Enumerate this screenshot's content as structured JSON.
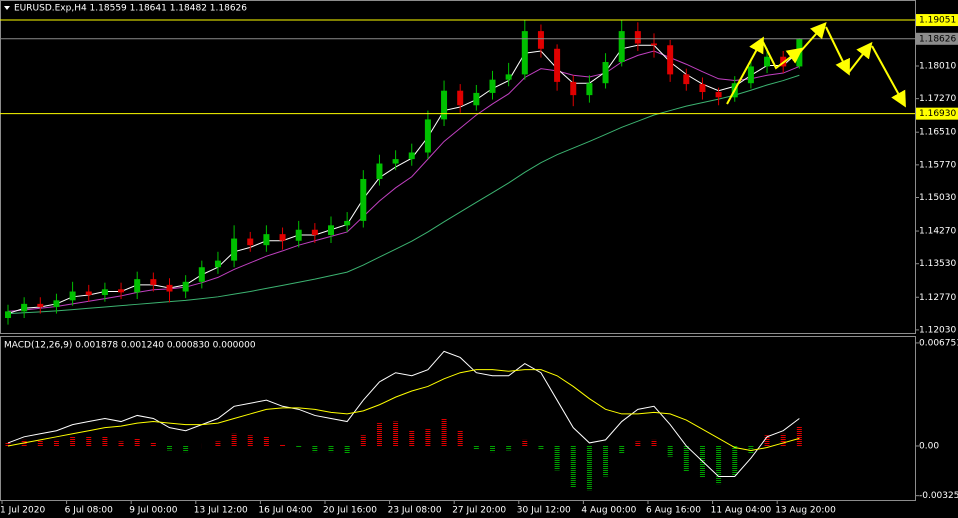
{
  "chart_data": [
    {
      "type": "candlestick",
      "title": "EURUSD.Exp,H4  1.18559 1.18641 1.18482 1.18626",
      "categories": [
        "1 Jul 2020",
        null,
        null,
        null,
        "6 Jul 08:00",
        null,
        null,
        null,
        "9 Jul 00:00",
        null,
        null,
        null,
        "13 Jul 12:00",
        null,
        null,
        null,
        "16 Jul 04:00",
        null,
        null,
        null,
        "20 Jul 16:00",
        null,
        null,
        null,
        "23 Jul 08:00",
        null,
        null,
        null,
        "27 Jul 20:00",
        null,
        null,
        null,
        "30 Jul 12:00",
        null,
        null,
        null,
        "4 Aug 00:00",
        null,
        null,
        null,
        "6 Aug 16:00",
        null,
        null,
        null,
        "11 Aug 04:00",
        null,
        null,
        null,
        "13 Aug 20:00",
        null
      ],
      "open": [
        1.123,
        1.1245,
        1.1262,
        1.1255,
        1.127,
        1.129,
        1.1282,
        1.1295,
        1.1288,
        1.1318,
        1.1305,
        1.129,
        1.1312,
        1.1345,
        1.136,
        1.141,
        1.1395,
        1.142,
        1.1405,
        1.143,
        1.1418,
        1.144,
        1.145,
        1.1545,
        1.158,
        1.159,
        1.1605,
        1.168,
        1.1745,
        1.1712,
        1.174,
        1.177,
        1.1782,
        1.188,
        1.184,
        1.1765,
        1.1735,
        1.1762,
        1.181,
        1.188,
        1.1852,
        1.1848,
        1.1782,
        1.176,
        1.1742,
        1.173,
        1.1762,
        1.18,
        1.1822,
        1.18
      ],
      "high": [
        1.126,
        1.1277,
        1.1277,
        1.1285,
        1.1312,
        1.1305,
        1.131,
        1.131,
        1.1335,
        1.1333,
        1.132,
        1.1327,
        1.136,
        1.138,
        1.144,
        1.1425,
        1.144,
        1.1435,
        1.145,
        1.1445,
        1.146,
        1.147,
        1.1565,
        1.16,
        1.161,
        1.1625,
        1.17,
        1.1768,
        1.176,
        1.1758,
        1.179,
        1.1808,
        1.1905,
        1.1895,
        1.185,
        1.178,
        1.178,
        1.183,
        1.1905,
        1.19,
        1.1875,
        1.186,
        1.1795,
        1.1775,
        1.1752,
        1.1778,
        1.1818,
        1.1842,
        1.1835,
        1.1864
      ],
      "low": [
        1.1215,
        1.123,
        1.124,
        1.124,
        1.1258,
        1.1267,
        1.1267,
        1.1273,
        1.1273,
        1.129,
        1.1265,
        1.1275,
        1.1297,
        1.133,
        1.1345,
        1.138,
        1.138,
        1.1385,
        1.139,
        1.14,
        1.14,
        1.1425,
        1.1435,
        1.153,
        1.1565,
        1.1575,
        1.159,
        1.1665,
        1.1695,
        1.17,
        1.1725,
        1.1755,
        1.177,
        1.182,
        1.1745,
        1.171,
        1.1718,
        1.175,
        1.18,
        1.1835,
        1.182,
        1.1765,
        1.1745,
        1.1725,
        1.1712,
        1.172,
        1.175,
        1.1785,
        1.1785,
        1.1795
      ],
      "close": [
        1.1245,
        1.1262,
        1.1255,
        1.127,
        1.129,
        1.1282,
        1.1295,
        1.1288,
        1.1318,
        1.1305,
        1.129,
        1.1312,
        1.1345,
        1.136,
        1.141,
        1.1395,
        1.142,
        1.1405,
        1.143,
        1.1418,
        1.144,
        1.145,
        1.1545,
        1.158,
        1.159,
        1.1605,
        1.168,
        1.1745,
        1.1712,
        1.174,
        1.177,
        1.1782,
        1.188,
        1.184,
        1.1765,
        1.1735,
        1.1762,
        1.181,
        1.188,
        1.1852,
        1.1848,
        1.1782,
        1.176,
        1.1742,
        1.173,
        1.1762,
        1.18,
        1.1822,
        1.18,
        1.1863
      ],
      "up_color": "#00c000",
      "down_color": "#e00000",
      "series": [
        {
          "color": "#3cb371",
          "values": [
            1.124,
            1.1242,
            1.1244,
            1.1246,
            1.1249,
            1.1252,
            1.1255,
            1.1258,
            1.1261,
            1.1264,
            1.1267,
            1.127,
            1.1274,
            1.1278,
            1.1284,
            1.129,
            1.1297,
            1.1304,
            1.1311,
            1.1318,
            1.1326,
            1.1334,
            1.135,
            1.1368,
            1.1386,
            1.1404,
            1.1425,
            1.1448,
            1.147,
            1.1492,
            1.1514,
            1.1536,
            1.156,
            1.1582,
            1.16,
            1.1615,
            1.163,
            1.1646,
            1.1662,
            1.1676,
            1.169,
            1.17,
            1.171,
            1.1718,
            1.1726,
            1.1735,
            1.1746,
            1.1758,
            1.1768,
            1.178
          ]
        },
        {
          "color": "#c040c0",
          "values": [
            1.1245,
            1.1248,
            1.1252,
            1.1256,
            1.1262,
            1.1268,
            1.1274,
            1.128,
            1.1288,
            1.1294,
            1.1296,
            1.13,
            1.131,
            1.1322,
            1.134,
            1.1355,
            1.137,
            1.1382,
            1.1395,
            1.1405,
            1.1415,
            1.1425,
            1.146,
            1.1495,
            1.1525,
            1.155,
            1.159,
            1.163,
            1.166,
            1.169,
            1.1715,
            1.1738,
            1.1775,
            1.1795,
            1.179,
            1.178,
            1.1776,
            1.1785,
            1.181,
            1.1825,
            1.1835,
            1.182,
            1.1805,
            1.1788,
            1.1772,
            1.1768,
            1.1772,
            1.178,
            1.1785,
            1.18
          ]
        },
        {
          "color": "#ffffff",
          "values": [
            1.124,
            1.1252,
            1.1255,
            1.1262,
            1.1278,
            1.1282,
            1.129,
            1.129,
            1.1305,
            1.1305,
            1.1298,
            1.1305,
            1.1328,
            1.1345,
            1.138,
            1.139,
            1.1405,
            1.1405,
            1.1418,
            1.1418,
            1.143,
            1.1442,
            1.15,
            1.1548,
            1.1572,
            1.1592,
            1.164,
            1.17,
            1.1708,
            1.1725,
            1.175,
            1.1768,
            1.183,
            1.1835,
            1.1795,
            1.1762,
            1.1762,
            1.1788,
            1.184,
            1.1848,
            1.1848,
            1.181,
            1.1782,
            1.176,
            1.1745,
            1.1755,
            1.178,
            1.1802,
            1.1802,
            1.1835
          ]
        }
      ],
      "ylim": [
        1.1196,
        1.1946
      ],
      "yticks": [
        {
          "value": 1.1801,
          "label": "1.18010"
        },
        {
          "value": 1.1727,
          "label": "1.17270"
        },
        {
          "value": 1.1651,
          "label": "1.16510"
        },
        {
          "value": 1.1577,
          "label": "1.15770"
        },
        {
          "value": 1.1503,
          "label": "1.15030"
        },
        {
          "value": 1.1427,
          "label": "1.14270"
        },
        {
          "value": 1.1353,
          "label": "1.13530"
        },
        {
          "value": 1.1277,
          "label": "1.12770"
        },
        {
          "value": 1.1203,
          "label": "1.12030"
        }
      ],
      "levels": [
        {
          "value": 1.19051,
          "color": "#ffff00"
        },
        {
          "value": 1.18626,
          "color": "#8c8c8c"
        },
        {
          "value": 1.1693,
          "label": "1.16930",
          "color": "#ffff00"
        }
      ]
    },
    {
      "type": "macd",
      "title": "MACD(12,26,9) 0.001878 0.001240 0.000830 0.000000",
      "histogram": [
        0.0002,
        0.0004,
        0.0004,
        0.0004,
        0.0006,
        0.0006,
        0.0006,
        0.0003,
        0.0005,
        0.0002,
        -0.0003,
        -0.0004,
        0.0,
        0.0003,
        0.0008,
        0.0007,
        0.0006,
        0.0001,
        -0.0001,
        -0.0004,
        -0.0004,
        -0.0005,
        0.0007,
        0.0015,
        0.0016,
        0.001,
        0.0011,
        0.0018,
        0.001,
        -0.0002,
        -0.0004,
        -0.0003,
        0.0004,
        -0.0002,
        -0.0016,
        -0.0027,
        -0.0029,
        -0.002,
        -0.0005,
        0.0003,
        0.0004,
        -0.0007,
        -0.0017,
        -0.0021,
        -0.0025,
        -0.0019,
        -0.0005,
        0.0007,
        0.0008,
        0.0013
      ],
      "up_color": "#e00000",
      "down_color": "#00a000",
      "series": [
        {
          "color": "#ffffff",
          "values": [
            0.0002,
            0.0006,
            0.0008,
            0.001,
            0.0014,
            0.0016,
            0.0018,
            0.0016,
            0.002,
            0.0018,
            0.0012,
            0.001,
            0.0014,
            0.0018,
            0.0026,
            0.0028,
            0.003,
            0.0026,
            0.0024,
            0.002,
            0.0018,
            0.0016,
            0.003,
            0.0042,
            0.0048,
            0.0046,
            0.005,
            0.0062,
            0.0058,
            0.0048,
            0.0046,
            0.0046,
            0.0054,
            0.0048,
            0.003,
            0.0012,
            0.0002,
            0.0004,
            0.0016,
            0.0024,
            0.0026,
            0.0014,
            0.0,
            -0.001,
            -0.002,
            -0.002,
            -0.0008,
            0.0006,
            0.001,
            0.0018
          ]
        },
        {
          "color": "#ffff00",
          "values": [
            0.0,
            0.0002,
            0.0004,
            0.0006,
            0.0008,
            0.001,
            0.0012,
            0.0013,
            0.0015,
            0.0016,
            0.0015,
            0.0014,
            0.0014,
            0.0015,
            0.0018,
            0.0021,
            0.0024,
            0.0025,
            0.0025,
            0.0024,
            0.0022,
            0.0021,
            0.0023,
            0.0027,
            0.0032,
            0.0036,
            0.0039,
            0.0044,
            0.0048,
            0.005,
            0.005,
            0.0049,
            0.005,
            0.005,
            0.0046,
            0.0039,
            0.0031,
            0.0024,
            0.0021,
            0.0021,
            0.0022,
            0.0021,
            0.0017,
            0.0011,
            0.0005,
            -0.0001,
            -0.0003,
            -0.0001,
            0.0002,
            0.0005
          ]
        }
      ],
      "ylim": [
        -0.00354,
        0.00714
      ],
      "yticks": [
        0.006751,
        {
          "value": 0,
          "label": "0.00"
        },
        -0.003256
      ]
    }
  ]
}
